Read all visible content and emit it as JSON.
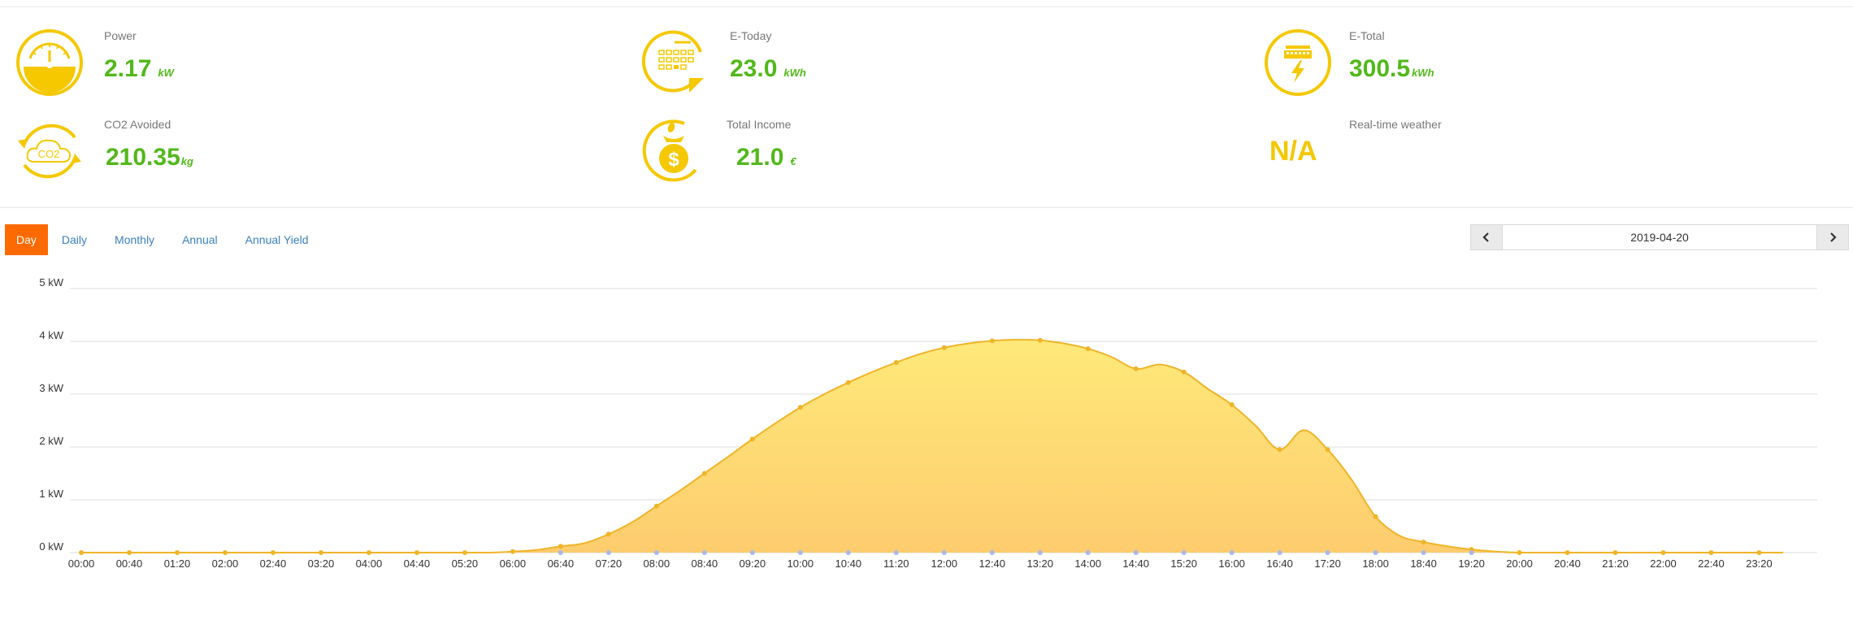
{
  "stats": {
    "power": {
      "label": "Power",
      "value": "2.17",
      "unit": "kW",
      "icon": "power-gauge-icon"
    },
    "etoday": {
      "label": "E-Today",
      "value": "23.0",
      "unit": "kWh",
      "icon": "calendar-icon"
    },
    "etotal": {
      "label": "E-Total",
      "value": "300.5",
      "unit": "kWh",
      "icon": "battery-charge-icon"
    },
    "co2": {
      "label": "CO2 Avoided",
      "value": "210.35",
      "unit": "kg",
      "icon": "co2-cloud-icon",
      "icon_text": "CO2"
    },
    "income": {
      "label": "Total Income",
      "value": "21.0",
      "unit": "€",
      "icon": "money-bag-icon",
      "icon_text": "$"
    },
    "weather": {
      "label": "Real-time weather",
      "value": "N/A"
    }
  },
  "colors": {
    "accent": "#f5c800",
    "value_green": "#52b81b",
    "active_tab": "#ff6a00",
    "link": "#3a7fc1",
    "line": "#f0b429"
  },
  "tabs": [
    {
      "label": "Day",
      "active": true
    },
    {
      "label": "Daily",
      "active": false
    },
    {
      "label": "Monthly",
      "active": false
    },
    {
      "label": "Annual",
      "active": false
    },
    {
      "label": "Annual Yield",
      "active": false
    }
  ],
  "date_picker": {
    "date": "2019-04-20",
    "prev_icon": "chevron-left-icon",
    "next_icon": "chevron-right-icon"
  },
  "chart_data": {
    "type": "area",
    "title": "",
    "xlabel": "",
    "ylabel": "",
    "y_unit": "kW",
    "ylim": [
      0,
      5
    ],
    "yticks": [
      "0 kW",
      "1 kW",
      "2 kW",
      "3 kW",
      "4 kW",
      "5 kW"
    ],
    "grid": true,
    "x": [
      "00:00",
      "00:20",
      "00:40",
      "01:00",
      "01:20",
      "01:40",
      "02:00",
      "02:20",
      "02:40",
      "03:00",
      "03:20",
      "03:40",
      "04:00",
      "04:20",
      "04:40",
      "05:00",
      "05:20",
      "05:40",
      "06:00",
      "06:20",
      "06:40",
      "07:00",
      "07:20",
      "07:40",
      "08:00",
      "08:20",
      "08:40",
      "09:00",
      "09:20",
      "09:40",
      "10:00",
      "10:20",
      "10:40",
      "11:00",
      "11:20",
      "11:40",
      "12:00",
      "12:20",
      "12:40",
      "13:00",
      "13:20",
      "13:40",
      "14:00",
      "14:20",
      "14:40",
      "15:00",
      "15:20",
      "15:40",
      "16:00",
      "16:20",
      "16:40",
      "17:00",
      "17:20",
      "17:40",
      "18:00",
      "18:20",
      "18:40",
      "19:00",
      "19:20",
      "19:40",
      "20:00",
      "20:20",
      "20:40",
      "21:00",
      "21:20",
      "21:40",
      "22:00",
      "22:20",
      "22:40",
      "23:00",
      "23:20",
      "23:40"
    ],
    "xticks": [
      "00:00",
      "00:40",
      "01:20",
      "02:00",
      "02:40",
      "03:20",
      "04:00",
      "04:40",
      "05:20",
      "06:00",
      "06:40",
      "07:20",
      "08:00",
      "08:40",
      "09:20",
      "10:00",
      "10:40",
      "11:20",
      "12:00",
      "12:40",
      "13:20",
      "14:00",
      "14:40",
      "15:20",
      "16:00",
      "16:40",
      "17:20",
      "18:00",
      "18:40",
      "19:20",
      "20:00",
      "20:40",
      "21:20",
      "22:00",
      "22:40",
      "23:20"
    ],
    "series": [
      {
        "values": [
          0,
          0,
          0,
          0,
          0,
          0,
          0,
          0,
          0,
          0,
          0,
          0,
          0,
          0,
          0,
          0,
          0,
          0,
          0.02,
          0.05,
          0.12,
          0.18,
          0.35,
          0.58,
          0.88,
          1.18,
          1.5,
          1.82,
          2.15,
          2.46,
          2.75,
          3.0,
          3.22,
          3.42,
          3.6,
          3.76,
          3.88,
          3.96,
          4.01,
          4.03,
          4.02,
          3.96,
          3.86,
          3.7,
          3.48,
          3.56,
          3.42,
          3.1,
          2.8,
          2.4,
          1.95,
          2.32,
          1.95,
          1.38,
          0.68,
          0.32,
          0.2,
          0.12,
          0.06,
          0.02,
          0,
          0,
          0,
          0,
          0,
          0,
          0,
          0,
          0,
          0,
          0,
          0
        ]
      }
    ]
  }
}
